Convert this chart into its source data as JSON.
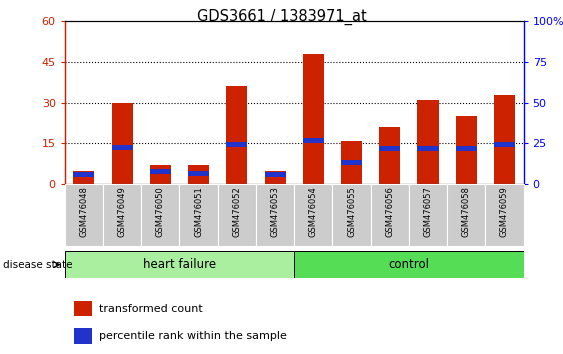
{
  "title": "GDS3661 / 1383971_at",
  "samples": [
    "GSM476048",
    "GSM476049",
    "GSM476050",
    "GSM476051",
    "GSM476052",
    "GSM476053",
    "GSM476054",
    "GSM476055",
    "GSM476056",
    "GSM476057",
    "GSM476058",
    "GSM476059"
  ],
  "red_values": [
    5,
    30,
    7,
    7,
    36,
    5,
    48,
    16,
    21,
    31,
    25,
    33
  ],
  "blue_center": [
    3.5,
    13.5,
    4.5,
    4.0,
    14.5,
    3.5,
    16.0,
    8.0,
    13.0,
    13.0,
    13.0,
    14.5
  ],
  "ylim_left": [
    0,
    60
  ],
  "ylim_right": [
    0,
    100
  ],
  "yticks_left": [
    0,
    15,
    30,
    45,
    60
  ],
  "yticks_right": [
    0,
    25,
    50,
    75,
    100
  ],
  "heart_failure_label": "heart failure",
  "control_label": "control",
  "disease_state_label": "disease state",
  "legend_red": "transformed count",
  "legend_blue": "percentile rank within the sample",
  "bar_color_red": "#cc2200",
  "bar_color_blue": "#2233cc",
  "hf_bg_color": "#aaeea0",
  "ctrl_bg_color": "#55dd55",
  "tick_label_bg": "#cccccc",
  "bar_width": 0.55,
  "blue_bar_height": 1.8
}
